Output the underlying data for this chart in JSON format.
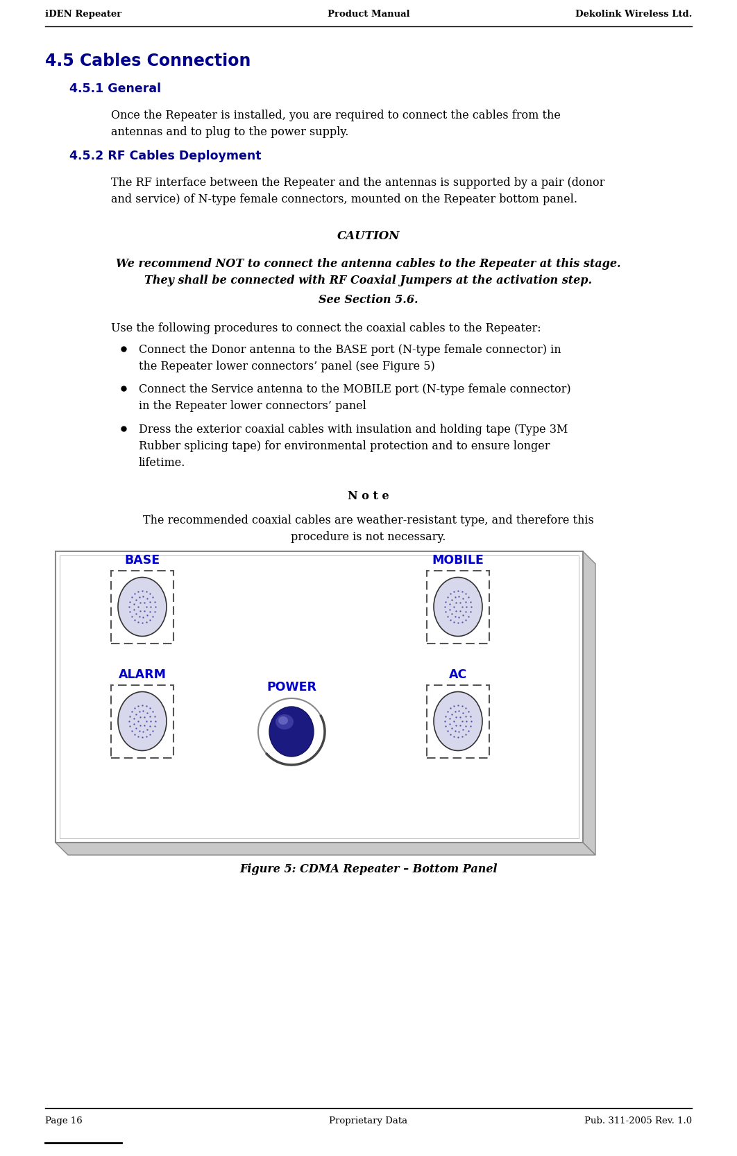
{
  "header_left": "iDEN Repeater",
  "header_center": "Product Manual",
  "header_right": "Dekolink Wireless Ltd.",
  "footer_left": "Page 16",
  "footer_center": "Proprietary Data",
  "footer_right": "Pub. 311-2005 Rev. 1.0",
  "title": "4.5 Cables Connection",
  "section1_title": "4.5.1 General",
  "section1_body": "Once the Repeater is installed, you are required to connect the cables from the\nantennas and to plug to the power supply.",
  "section2_title": "4.5.2 RF Cables Deployment",
  "section2_body": "The RF interface between the Repeater and the antennas is supported by a pair (donor\nand service) of N-type female connectors, mounted on the Repeater bottom panel.",
  "caution_title": "CAUTION",
  "caution_body": "We recommend NOT to connect the antenna cables to the Repeater at this stage.\nThey shall be connected with RF Coaxial Jumpers at the activation step.",
  "see_section": "See Section 5.6.",
  "use_following": "Use the following procedures to connect the coaxial cables to the Repeater:",
  "bullets": [
    "Connect the Donor antenna to the BASE port (N-type female connector) in\nthe Repeater lower connectors’ panel (see Figure 5)",
    "Connect the Service antenna to the MOBILE port (N-type female connector)\nin the Repeater lower connectors’ panel",
    "Dress the exterior coaxial cables with insulation and holding tape (Type 3M\nRubber splicing tape) for environmental protection and to ensure longer\nlifetime."
  ],
  "note_title": "N o t e",
  "note_body": "The recommended coaxial cables are weather-resistant type, and therefore this\nprocedure is not necessary.",
  "figure_caption": "Figure 5: CDMA Repeater – Bottom Panel",
  "label_base": "BASE",
  "label_mobile": "MOBILE",
  "label_alarm": "ALARM",
  "label_power": "POWER",
  "label_ac": "AC",
  "dark_blue": "#00008B",
  "label_blue": "#0000CC",
  "bg_color": "#ffffff",
  "text_color": "#000000",
  "panel_bg": "#ffffff",
  "panel_border": "#888888",
  "panel_3d": "#c8c8c8",
  "connector_bg": "#d8d8ec",
  "connector_dot": "#4040a0"
}
